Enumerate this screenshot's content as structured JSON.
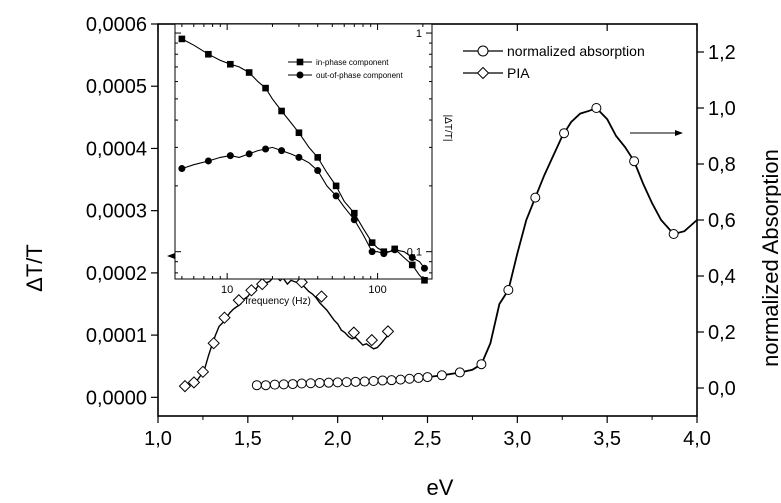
{
  "chart_data": [
    {
      "type": "line",
      "xlabel": "eV",
      "ylabel": "ΔT/T",
      "y2label": "normalized Absorption",
      "xlim": [
        1.0,
        4.0
      ],
      "ylim": [
        -3e-05,
        0.0006
      ],
      "y2lim": [
        -0.1,
        1.3
      ],
      "x_ticks": [
        "1,0",
        "1,5",
        "2,0",
        "2,5",
        "3,0",
        "3,5",
        "4,0"
      ],
      "y_ticks": [
        "0,0000",
        "0,0001",
        "0,0002",
        "0,0003",
        "0,0004",
        "0,0005",
        "0,0006"
      ],
      "y2_ticks": [
        "0,0",
        "0,2",
        "0,4",
        "0,6",
        "0,8",
        "1,0",
        "1,2"
      ],
      "grid": false,
      "legend": "top-right",
      "series": [
        {
          "name": "normalized absorption",
          "axis": "right",
          "marker": "open-circle",
          "x": [
            1.55,
            1.6,
            1.65,
            1.7,
            1.75,
            1.8,
            1.85,
            1.9,
            1.95,
            2.0,
            2.05,
            2.1,
            2.15,
            2.2,
            2.25,
            2.3,
            2.35,
            2.4,
            2.45,
            2.5,
            2.55,
            2.6,
            2.65,
            2.7,
            2.75,
            2.8,
            2.85,
            2.9,
            2.95,
            3.0,
            3.05,
            3.1,
            3.15,
            3.2,
            3.25,
            3.3,
            3.35,
            3.4,
            3.44,
            3.5,
            3.55,
            3.6,
            3.65,
            3.7,
            3.75,
            3.8,
            3.87,
            3.93,
            4.0
          ],
          "y": [
            0.01,
            0.01,
            0.012,
            0.013,
            0.014,
            0.016,
            0.017,
            0.018,
            0.019,
            0.02,
            0.021,
            0.022,
            0.023,
            0.025,
            0.027,
            0.028,
            0.03,
            0.033,
            0.036,
            0.039,
            0.043,
            0.047,
            0.052,
            0.058,
            0.065,
            0.085,
            0.16,
            0.3,
            0.35,
            0.48,
            0.6,
            0.68,
            0.76,
            0.83,
            0.9,
            0.95,
            0.98,
            0.99,
            1.0,
            0.96,
            0.9,
            0.86,
            0.81,
            0.73,
            0.66,
            0.6,
            0.55,
            0.56,
            0.6
          ],
          "marker_x": [
            1.55,
            1.6,
            1.65,
            1.7,
            1.75,
            1.8,
            1.85,
            1.9,
            1.95,
            2.0,
            2.05,
            2.1,
            2.15,
            2.2,
            2.25,
            2.3,
            2.35,
            2.4,
            2.45,
            2.5,
            2.58,
            2.68,
            2.8,
            2.95,
            3.1,
            3.26,
            3.44,
            3.65,
            3.87
          ]
        },
        {
          "name": "PIA",
          "axis": "left",
          "marker": "open-diamond",
          "x": [
            1.15,
            1.18,
            1.2,
            1.22,
            1.24,
            1.26,
            1.28,
            1.3,
            1.32,
            1.34,
            1.36,
            1.38,
            1.4,
            1.42,
            1.44,
            1.46,
            1.48,
            1.5,
            1.52,
            1.54,
            1.56,
            1.58,
            1.6,
            1.62,
            1.64,
            1.66,
            1.68,
            1.7,
            1.72,
            1.74,
            1.76,
            1.78,
            1.8,
            1.82,
            1.84,
            1.86,
            1.88,
            1.9,
            1.92,
            1.94,
            1.96,
            1.98,
            2.0,
            2.02,
            2.04,
            2.06,
            2.08,
            2.1,
            2.12,
            2.14,
            2.16,
            2.18,
            2.2,
            2.22,
            2.24,
            2.28
          ],
          "y": [
            1.8e-05,
            2.2e-05,
            2.4e-05,
            2.8e-05,
            3.6e-05,
            4.6e-05,
            6.6e-05,
            8.4e-05,
            0.0001,
            0.000114,
            0.00012,
            0.000128,
            0.000136,
            0.000142,
            0.000146,
            0.00015,
            0.000158,
            0.000162,
            0.00017,
            0.000172,
            0.00018,
            0.000182,
            0.000184,
            0.000186,
            0.000192,
            0.000194,
            0.000196,
            0.00019,
            0.000182,
            0.000188,
            0.000186,
            0.000184,
            0.000182,
            0.000176,
            0.00017,
            0.000166,
            0.00016,
            0.000152,
            0.000146,
            0.00014,
            0.000132,
            0.000124,
            0.000118,
            0.000108,
            0.000104,
            9.8e-05,
            9.4e-05,
            9.6e-05,
            9e-05,
            8.4e-05,
            8.6e-05,
            8.2e-05,
            7.8e-05,
            8e-05,
            8.6e-05,
            0.0001
          ],
          "marker_x": [
            1.15,
            1.2,
            1.25,
            1.31,
            1.37,
            1.45,
            1.52,
            1.58,
            1.68,
            1.8,
            1.91,
            2.09,
            2.19,
            2.28
          ],
          "marker_y": [
            1.8e-05,
            2.4e-05,
            4.1e-05,
            8.7e-05,
            0.000128,
            0.000156,
            0.000172,
            0.000182,
            0.000196,
            0.000185,
            0.000162,
            0.000104,
            9.2e-05,
            0.000106
          ]
        }
      ]
    },
    {
      "type": "line",
      "xlabel": "frequency (Hz)",
      "ylabel": "|ΔT/T|",
      "x_scale": "log",
      "y_scale": "log",
      "xlim": [
        4.5,
        230
      ],
      "ylim": [
        0.075,
        1.1
      ],
      "x_ticks": [
        "10",
        "100"
      ],
      "y_ticks": [
        "1",
        "0,1"
      ],
      "legend": "top-right",
      "series": [
        {
          "name": "in-phase component",
          "marker": "filled-square",
          "x": [
            5.0,
            6.0,
            7.5,
            9.0,
            10.5,
            12.0,
            14.0,
            16.0,
            18.0,
            20.0,
            23.0,
            26.5,
            30.0,
            35.0,
            40.0,
            46.0,
            53.0,
            60.0,
            70.0,
            80.0,
            92.0,
            100.0,
            110.0,
            120.0,
            130.0,
            150.0,
            170.0,
            190.0,
            205.0
          ],
          "y": [
            0.94,
            0.88,
            0.8,
            0.75,
            0.72,
            0.7,
            0.66,
            0.6,
            0.56,
            0.5,
            0.44,
            0.39,
            0.35,
            0.3,
            0.27,
            0.23,
            0.2,
            0.17,
            0.15,
            0.128,
            0.11,
            0.104,
            0.1,
            0.1,
            0.103,
            0.094,
            0.087,
            0.078,
            0.074
          ]
        },
        {
          "name": "out-of-phase component",
          "marker": "filled-circle",
          "x": [
            5.0,
            6.0,
            7.5,
            9.0,
            10.5,
            12.0,
            14.0,
            16.0,
            18.0,
            20.0,
            23.0,
            26.5,
            30.0,
            35.0,
            40.0,
            46.0,
            53.0,
            60.0,
            70.0,
            80.0,
            92.0,
            100.0,
            110.0,
            120.0,
            130.0,
            150.0,
            170.0,
            190.0,
            205.0
          ],
          "y": [
            0.24,
            0.25,
            0.26,
            0.27,
            0.275,
            0.27,
            0.28,
            0.29,
            0.295,
            0.3,
            0.29,
            0.28,
            0.27,
            0.255,
            0.235,
            0.2,
            0.18,
            0.16,
            0.14,
            0.12,
            0.1,
            0.1,
            0.098,
            0.1,
            0.102,
            0.1,
            0.094,
            0.09,
            0.084
          ]
        }
      ]
    }
  ]
}
